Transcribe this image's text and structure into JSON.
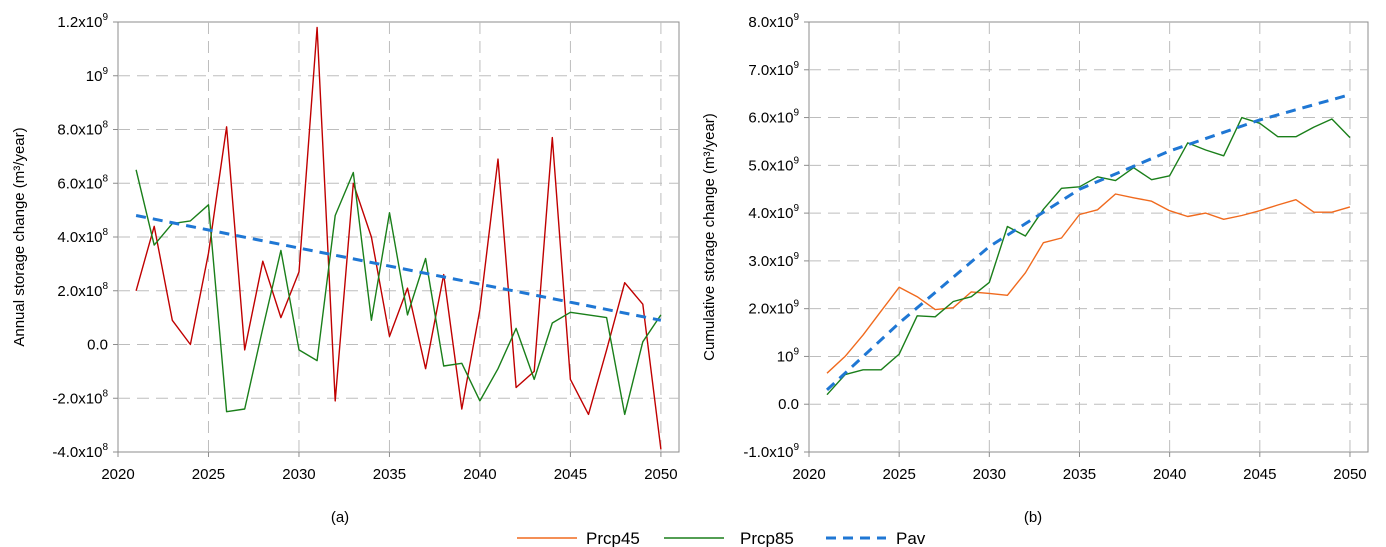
{
  "chart_data": [
    {
      "type": "line",
      "panel_label": "(a)",
      "ylabel": "Annual storage change (m³/year)",
      "xlim": [
        2020,
        2051
      ],
      "ylim": [
        -400000000,
        1200000000
      ],
      "grid": true,
      "xticks": [
        2020,
        2025,
        2030,
        2035,
        2040,
        2045,
        2050
      ],
      "yticks": [
        {
          "v": -400000000,
          "m": "-4.0x10",
          "e": "8"
        },
        {
          "v": -200000000,
          "m": "-2.0x10",
          "e": "8"
        },
        {
          "v": 0,
          "m": "0.0",
          "e": ""
        },
        {
          "v": 200000000,
          "m": "2.0x10",
          "e": "8"
        },
        {
          "v": 400000000,
          "m": "4.0x10",
          "e": "8"
        },
        {
          "v": 600000000,
          "m": "6.0x10",
          "e": "8"
        },
        {
          "v": 800000000,
          "m": "8.0x10",
          "e": "8"
        },
        {
          "v": 1000000000,
          "m": "10",
          "e": "9"
        },
        {
          "v": 1200000000,
          "m": "1.2x10",
          "e": "9"
        }
      ],
      "series": [
        {
          "color": "#c00000",
          "dash": false,
          "x": [
            2021,
            2022,
            2023,
            2024,
            2025,
            2026,
            2027,
            2028,
            2029,
            2030,
            2031,
            2032,
            2033,
            2034,
            2035,
            2036,
            2037,
            2038,
            2039,
            2040,
            2041,
            2042,
            2043,
            2044,
            2045,
            2046,
            2047,
            2048,
            2049,
            2050
          ],
          "y": [
            200000000.0,
            440000000.0,
            90000000.0,
            0.0,
            340000000.0,
            810000000.0,
            -20000000.0,
            310000000.0,
            100000000.0,
            270000000.0,
            1180000000.0,
            -210000000.0,
            600000000.0,
            400000000.0,
            30000000.0,
            210000000.0,
            -90000000.0,
            260000000.0,
            -240000000.0,
            130000000.0,
            690000000.0,
            -160000000.0,
            -100000000.0,
            770000000.0,
            -130000000.0,
            -260000000.0,
            -20000000.0,
            230000000.0,
            150000000.0,
            -390000000.0
          ]
        },
        {
          "color": "#1a7f1a",
          "dash": false,
          "x": [
            2021,
            2022,
            2023,
            2024,
            2025,
            2026,
            2027,
            2028,
            2029,
            2030,
            2031,
            2032,
            2033,
            2034,
            2035,
            2036,
            2037,
            2038,
            2039,
            2040,
            2041,
            2042,
            2043,
            2044,
            2045,
            2046,
            2047,
            2048,
            2049,
            2050
          ],
          "y": [
            650000000.0,
            370000000.0,
            450000000.0,
            460000000.0,
            520000000.0,
            -250000000.0,
            -240000000.0,
            60000000.0,
            350000000.0,
            -20000000.0,
            -60000000.0,
            480000000.0,
            640000000.0,
            90000000.0,
            490000000.0,
            110000000.0,
            320000000.0,
            -80000000.0,
            -70000000.0,
            -210000000.0,
            -90000000.0,
            60000000.0,
            -130000000.0,
            80000000.0,
            120000000.0,
            110000000.0,
            100000000.0,
            -260000000.0,
            10000000.0,
            110000000.0
          ]
        },
        {
          "color": "#1f77d4",
          "dash": true,
          "x": [
            2021,
            2050
          ],
          "y": [
            480000000.0,
            90000000.0
          ]
        }
      ]
    },
    {
      "type": "line",
      "panel_label": "(b)",
      "ylabel": "Cumulative storage change  (m³/year)",
      "xlim": [
        2020,
        2051
      ],
      "ylim": [
        -1000000000,
        8000000000
      ],
      "grid": true,
      "xticks": [
        2020,
        2025,
        2030,
        2035,
        2040,
        2045,
        2050
      ],
      "yticks": [
        {
          "v": -1000000000,
          "m": "-1.0x10",
          "e": "9"
        },
        {
          "v": 0,
          "m": "0.0",
          "e": ""
        },
        {
          "v": 1000000000,
          "m": "10",
          "e": "9"
        },
        {
          "v": 2000000000,
          "m": "2.0x10",
          "e": "9"
        },
        {
          "v": 3000000000,
          "m": "3.0x10",
          "e": "9"
        },
        {
          "v": 4000000000,
          "m": "4.0x10",
          "e": "9"
        },
        {
          "v": 5000000000,
          "m": "5.0x10",
          "e": "9"
        },
        {
          "v": 6000000000,
          "m": "6.0x10",
          "e": "9"
        },
        {
          "v": 7000000000,
          "m": "7.0x10",
          "e": "9"
        },
        {
          "v": 8000000000,
          "m": "8.0x10",
          "e": "9"
        }
      ],
      "series": [
        {
          "name": "Prcp45",
          "color": "#f06a1e",
          "dash": false,
          "x": [
            2021,
            2022,
            2023,
            2024,
            2025,
            2026,
            2027,
            2028,
            2029,
            2030,
            2031,
            2032,
            2033,
            2034,
            2035,
            2036,
            2037,
            2038,
            2039,
            2040,
            2041,
            2042,
            2043,
            2044,
            2045,
            2046,
            2047,
            2048,
            2049,
            2050
          ],
          "y": [
            650000000.0,
            1000000000.0,
            1450000000.0,
            1950000000.0,
            2450000000.0,
            2250000000.0,
            1980000000.0,
            2020000000.0,
            2350000000.0,
            2320000000.0,
            2280000000.0,
            2750000000.0,
            3380000000.0,
            3480000000.0,
            3970000000.0,
            4070000000.0,
            4400000000.0,
            4320000000.0,
            4250000000.0,
            4050000000.0,
            3930000000.0,
            4000000000.0,
            3870000000.0,
            3950000000.0,
            4050000000.0,
            4170000000.0,
            4280000000.0,
            4020000000.0,
            4020000000.0,
            4130000000.0
          ]
        },
        {
          "name": "Prcp85",
          "color": "#1a7f1a",
          "dash": false,
          "x": [
            2021,
            2022,
            2023,
            2024,
            2025,
            2026,
            2027,
            2028,
            2029,
            2030,
            2031,
            2032,
            2033,
            2034,
            2035,
            2036,
            2037,
            2038,
            2039,
            2040,
            2041,
            2042,
            2043,
            2044,
            2045,
            2046,
            2047,
            2048,
            2049,
            2050
          ],
          "y": [
            200000000.0,
            620000000.0,
            720000000.0,
            720000000.0,
            1050000000.0,
            1850000000.0,
            1830000000.0,
            2150000000.0,
            2250000000.0,
            2550000000.0,
            3720000000.0,
            3520000000.0,
            4080000000.0,
            4520000000.0,
            4550000000.0,
            4760000000.0,
            4680000000.0,
            4950000000.0,
            4700000000.0,
            4780000000.0,
            5470000000.0,
            5320000000.0,
            5200000000.0,
            6000000000.0,
            5880000000.0,
            5600000000.0,
            5600000000.0,
            5800000000.0,
            5970000000.0,
            5580000000.0
          ]
        },
        {
          "name": "Pav",
          "color": "#1f77d4",
          "dash": true,
          "x": [
            2021,
            2025,
            2030,
            2035,
            2040,
            2045,
            2050
          ],
          "y": [
            300000000.0,
            1700000000.0,
            3300000000.0,
            4500000000.0,
            5300000000.0,
            5950000000.0,
            6480000000.0
          ]
        }
      ]
    }
  ],
  "legend": [
    {
      "label": "Prcp45",
      "color": "#f06a1e",
      "dash": false
    },
    {
      "label": "Prcp85",
      "color": "#1a7f1a",
      "dash": false
    },
    {
      "label": "Pav",
      "color": "#1f77d4",
      "dash": true
    }
  ]
}
